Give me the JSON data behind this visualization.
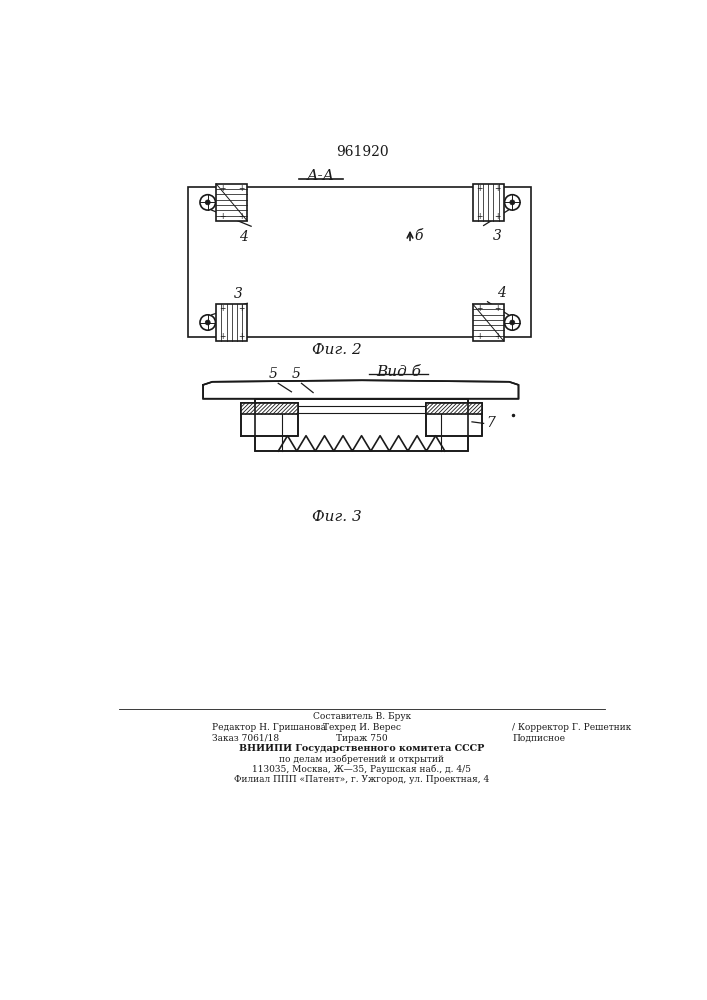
{
  "patent_number": "961920",
  "fig2_label": "А-А",
  "fig2_caption": "Фиг. 2",
  "fig3_caption": "Фиг. 3",
  "view_b_label": "Вид б",
  "background_color": "#ffffff",
  "line_color": "#1a1a1a",
  "footer_text_1": "Составитель В. Брук",
  "footer_text_2l": "Редактор Н. Гришанова",
  "footer_text_2m": "Техред И. Верес",
  "footer_text_2r": "/ Корректор Г. Решетник",
  "footer_text_3l": "Заказ 7061/18",
  "footer_text_3m": "Тираж 750",
  "footer_text_3r": "Подписное",
  "footer_text_4": "ВНИИПИ Государственного комитета СССР",
  "footer_text_5": "по делам изобретений и открытий",
  "footer_text_6": "113035, Москва, Ж—35, Раушская наб., д. 4/5",
  "footer_text_7": "Филиал ППП «Патент», г. Ужгород, ул. Проектная, 4"
}
